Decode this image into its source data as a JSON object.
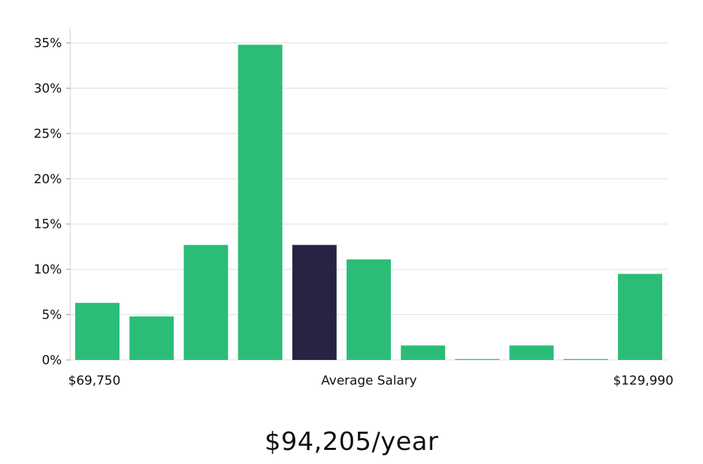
{
  "chart_data": {
    "type": "bar",
    "title": "",
    "xlabel": "Average Salary",
    "ylabel": "",
    "x_min_label": "$69,750",
    "x_max_label": "$129,990",
    "ylim": [
      0,
      35
    ],
    "y_ticks": [
      0,
      5,
      10,
      15,
      20,
      25,
      30,
      35
    ],
    "y_tick_suffix": "%",
    "grid": true,
    "bar_color": "#2bbd78",
    "highlight_color": "#262343",
    "highlight_index": 4,
    "values": [
      6.3,
      4.8,
      12.7,
      34.8,
      12.7,
      11.1,
      1.6,
      0.1,
      1.6,
      0.1,
      9.5
    ]
  },
  "summary": {
    "salary_text": "$94,205/year"
  }
}
